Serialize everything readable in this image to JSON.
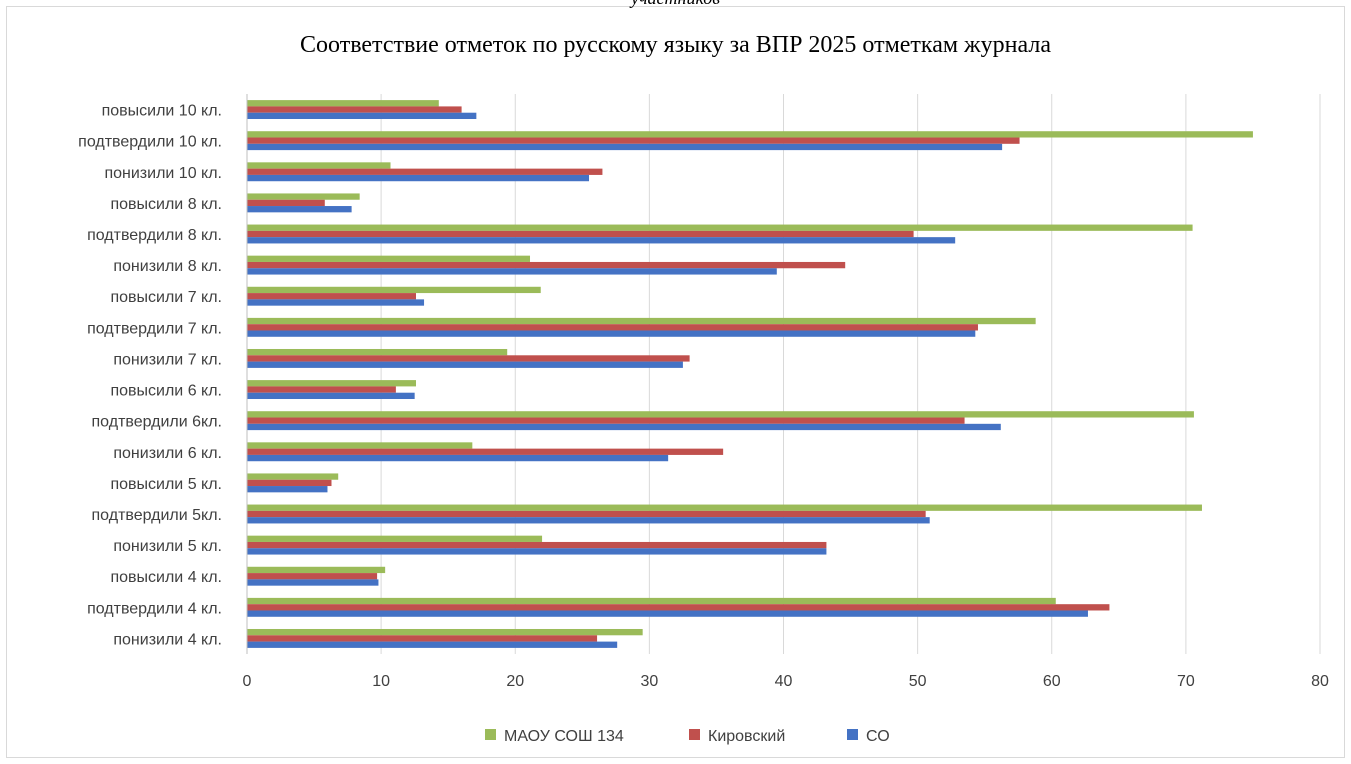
{
  "header_caption": "участников",
  "chart_data": {
    "type": "bar",
    "orientation": "horizontal",
    "title": "Соответствие отметок  по русскому языку за ВПР 2025 отметкам журнала",
    "categories": [
      "понизили 4 кл.",
      "подтвердили 4 кл.",
      "повысили 4 кл.",
      "понизили 5 кл.",
      "подтвердили 5кл.",
      "повысили 5 кл.",
      "понизили 6 кл.",
      "подтвердили 6кл.",
      "повысили 6 кл.",
      "понизили 7 кл.",
      "подтвердили 7 кл.",
      "повысили 7 кл.",
      "понизили 8 кл.",
      "подтвердили 8 кл.",
      "повысили 8 кл.",
      "понизили 10 кл.",
      "подтвердили 10 кл.",
      "повысили 10 кл."
    ],
    "series": [
      {
        "name": "СО",
        "color": "#4472c4",
        "values": [
          27.6,
          62.7,
          9.8,
          43.2,
          50.9,
          6.0,
          31.4,
          56.2,
          12.5,
          32.5,
          54.3,
          13.2,
          39.5,
          52.8,
          7.8,
          25.5,
          56.3,
          17.1
        ]
      },
      {
        "name": "Кировский",
        "color": "#c0504d",
        "values": [
          26.1,
          64.3,
          9.7,
          43.2,
          50.6,
          6.3,
          35.5,
          53.5,
          11.1,
          33.0,
          54.5,
          12.6,
          44.6,
          49.7,
          5.8,
          26.5,
          57.6,
          16.0
        ]
      },
      {
        "name": "МАОУ СОШ 134",
        "color": "#9bbb59",
        "values": [
          29.5,
          60.3,
          10.3,
          22.0,
          71.2,
          6.8,
          16.8,
          70.6,
          12.6,
          19.4,
          58.8,
          21.9,
          21.1,
          70.5,
          8.4,
          10.7,
          75.0,
          14.3
        ]
      }
    ],
    "xlim": [
      0,
      80
    ],
    "xticks": [
      0,
      10,
      20,
      30,
      40,
      50,
      60,
      70,
      80
    ],
    "legend": {
      "placement": "bottom",
      "order": [
        "МАОУ СОШ 134",
        "Кировский",
        "СО"
      ]
    },
    "grid": true
  }
}
